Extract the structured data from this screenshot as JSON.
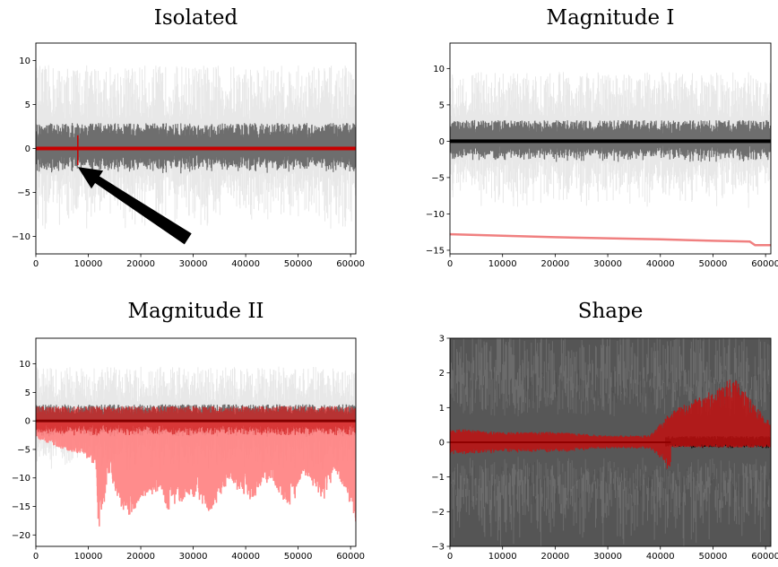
{
  "chart_data": [
    {
      "type": "line",
      "title": "Isolated",
      "xlim": [
        0,
        61000
      ],
      "ylim": [
        -12,
        12
      ],
      "x_ticks": [
        0,
        10000,
        20000,
        30000,
        40000,
        50000,
        60000
      ],
      "y_ticks": [
        -10,
        -5,
        0,
        5,
        10
      ],
      "series": [
        {
          "x": [
            0,
            61000
          ],
          "values": [
            0,
            0
          ]
        }
      ],
      "annotations": [
        {
          "type": "spike",
          "x": 8000,
          "values": [
            1.5,
            -1.9
          ]
        },
        {
          "type": "arrow",
          "from": [
            29000,
            -10.3
          ],
          "to": [
            8000,
            -2.1
          ]
        }
      ],
      "colors": {
        "background_band": "#585858",
        "faint_lines": "#d9d9d9",
        "highlight": "#c80000"
      }
    },
    {
      "type": "line",
      "title": "Magnitude I",
      "xlim": [
        0,
        61000
      ],
      "ylim": [
        -15.5,
        13.5
      ],
      "x_ticks": [
        0,
        10000,
        20000,
        30000,
        40000,
        50000,
        60000
      ],
      "y_ticks": [
        -15,
        -10,
        -5,
        0,
        5,
        10
      ],
      "series": [
        {
          "x": [
            0,
            10000,
            20000,
            30000,
            40000,
            50000,
            57000,
            58000,
            61000
          ],
          "values": [
            -12.8,
            -13.0,
            -13.2,
            -13.35,
            -13.5,
            -13.7,
            -13.8,
            -14.3,
            -14.3
          ]
        }
      ],
      "colors": {
        "background_band": "#585858",
        "faint_lines": "#d9d9d9",
        "center_line": "#000000",
        "highlight": "#f08080"
      }
    },
    {
      "type": "area",
      "title": "Magnitude II",
      "xlim": [
        0,
        61000
      ],
      "ylim": [
        -22,
        14.5
      ],
      "x_ticks": [
        0,
        10000,
        20000,
        30000,
        40000,
        50000,
        60000
      ],
      "y_ticks": [
        -20,
        -15,
        -10,
        -5,
        0,
        5,
        10
      ],
      "series": [
        {
          "x": [
            0,
            5000,
            9000,
            11500,
            12000,
            12500,
            13500,
            14000,
            16000,
            18000,
            20000,
            22000,
            24000,
            25000,
            27000,
            29000,
            31000,
            33000,
            35000,
            37000,
            39000,
            41000,
            43000,
            45000,
            47000,
            49000,
            51000,
            53000,
            55000,
            57000,
            59000,
            61000
          ],
          "values": [
            -3,
            -5,
            -6,
            -8,
            -20.5,
            -17,
            -12,
            -9,
            -15,
            -17,
            -14,
            -13,
            -12,
            -16,
            -15,
            -13,
            -14,
            -16,
            -14,
            -10,
            -13,
            -14,
            -12,
            -10,
            -14,
            -15,
            -9,
            -12,
            -14,
            -9,
            -12,
            -18
          ]
        }
      ],
      "colors": {
        "background_band": "#585858",
        "faint_lines": "#d9d9d9",
        "center_line": "#800000",
        "highlight": "#ff7f7f",
        "band_red": "#d02020"
      }
    },
    {
      "type": "area",
      "title": "Shape",
      "xlim": [
        0,
        61000
      ],
      "ylim": [
        -3,
        3
      ],
      "x_ticks": [
        0,
        10000,
        20000,
        30000,
        40000,
        50000,
        60000
      ],
      "y_ticks": [
        -3,
        -2,
        -1,
        0,
        1,
        2,
        3
      ],
      "series": [
        {
          "x": [
            0,
            10000,
            20000,
            30000,
            38000,
            42000,
            46000,
            50000,
            54000,
            57000,
            59000,
            61000
          ],
          "values": [
            0.4,
            0.3,
            0.3,
            0.2,
            0.2,
            0.9,
            1.2,
            1.5,
            1.9,
            1.3,
            0.9,
            0.6
          ]
        }
      ],
      "colors": {
        "background_band": "#555555",
        "faint_lines": "#b0b0b0",
        "highlight": "#c01010"
      }
    }
  ]
}
